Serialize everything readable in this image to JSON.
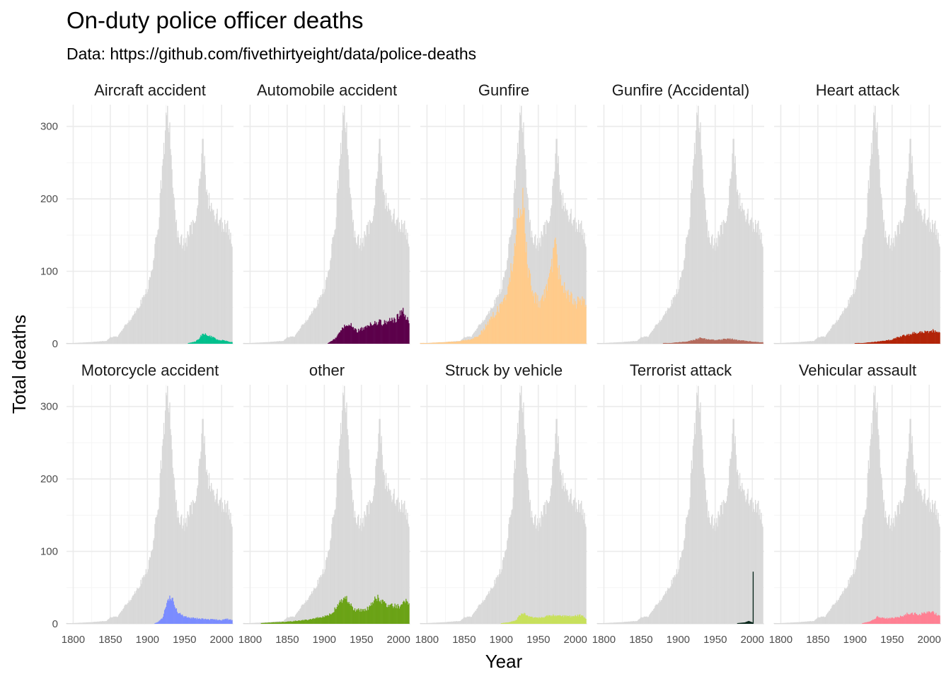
{
  "chart_data": {
    "type": "bar",
    "title": "On-duty police officer deaths",
    "subtitle": "Data: https://github.com/fivethirtyeight/data/police-deaths",
    "xlabel": "Year",
    "ylabel": "Total deaths",
    "xlim": [
      1791,
      2016
    ],
    "ylim": [
      0,
      330
    ],
    "x_ticks": [
      1800,
      1850,
      1900,
      1950,
      2000
    ],
    "y_ticks": [
      0,
      100,
      200,
      300
    ],
    "grid": true,
    "legend": "none",
    "total_series": {
      "name": "",
      "color": "#d9d9d9",
      "points": [
        [
          1791,
          1
        ],
        [
          1800,
          1
        ],
        [
          1820,
          2
        ],
        [
          1845,
          4
        ],
        [
          1850,
          9
        ],
        [
          1860,
          10
        ],
        [
          1870,
          25
        ],
        [
          1880,
          38
        ],
        [
          1890,
          55
        ],
        [
          1900,
          75
        ],
        [
          1905,
          95
        ],
        [
          1910,
          130
        ],
        [
          1915,
          170
        ],
        [
          1920,
          240
        ],
        [
          1925,
          300
        ],
        [
          1928,
          315
        ],
        [
          1932,
          265
        ],
        [
          1936,
          190
        ],
        [
          1940,
          150
        ],
        [
          1945,
          145
        ],
        [
          1950,
          135
        ],
        [
          1955,
          150
        ],
        [
          1960,
          160
        ],
        [
          1965,
          180
        ],
        [
          1970,
          220
        ],
        [
          1974,
          280
        ],
        [
          1977,
          245
        ],
        [
          1980,
          205
        ],
        [
          1985,
          190
        ],
        [
          1990,
          180
        ],
        [
          1995,
          175
        ],
        [
          2000,
          165
        ],
        [
          2005,
          160
        ],
        [
          2010,
          160
        ],
        [
          2013,
          140
        ],
        [
          2014,
          135
        ]
      ]
    },
    "facets": [
      {
        "label": "Aircraft accident",
        "color": "#00c08d",
        "points": [
          [
            1955,
            1
          ],
          [
            1965,
            3
          ],
          [
            1970,
            8
          ],
          [
            1975,
            14
          ],
          [
            1980,
            12
          ],
          [
            1985,
            10
          ],
          [
            1990,
            8
          ],
          [
            1995,
            5
          ],
          [
            2000,
            5
          ],
          [
            2005,
            4
          ],
          [
            2010,
            3
          ],
          [
            2014,
            2
          ]
        ]
      },
      {
        "label": "Automobile accident",
        "color": "#5c004b",
        "points": [
          [
            1905,
            1
          ],
          [
            1910,
            4
          ],
          [
            1915,
            8
          ],
          [
            1920,
            15
          ],
          [
            1925,
            22
          ],
          [
            1930,
            26
          ],
          [
            1935,
            28
          ],
          [
            1940,
            20
          ],
          [
            1945,
            18
          ],
          [
            1950,
            20
          ],
          [
            1955,
            23
          ],
          [
            1960,
            25
          ],
          [
            1965,
            27
          ],
          [
            1970,
            29
          ],
          [
            1975,
            30
          ],
          [
            1980,
            28
          ],
          [
            1985,
            30
          ],
          [
            1990,
            32
          ],
          [
            1995,
            32
          ],
          [
            2000,
            38
          ],
          [
            2005,
            45
          ],
          [
            2010,
            38
          ],
          [
            2014,
            30
          ]
        ]
      },
      {
        "label": "Gunfire",
        "color": "#ffcb8b",
        "points": [
          [
            1791,
            1
          ],
          [
            1800,
            1
          ],
          [
            1820,
            2
          ],
          [
            1840,
            3
          ],
          [
            1850,
            5
          ],
          [
            1860,
            6
          ],
          [
            1870,
            12
          ],
          [
            1880,
            25
          ],
          [
            1890,
            40
          ],
          [
            1900,
            52
          ],
          [
            1905,
            62
          ],
          [
            1910,
            90
          ],
          [
            1915,
            110
          ],
          [
            1920,
            150
          ],
          [
            1925,
            185
          ],
          [
            1928,
            197
          ],
          [
            1932,
            160
          ],
          [
            1935,
            110
          ],
          [
            1940,
            82
          ],
          [
            1945,
            65
          ],
          [
            1950,
            57
          ],
          [
            1955,
            60
          ],
          [
            1960,
            70
          ],
          [
            1965,
            85
          ],
          [
            1970,
            120
          ],
          [
            1973,
            145
          ],
          [
            1976,
            110
          ],
          [
            1980,
            85
          ],
          [
            1985,
            75
          ],
          [
            1990,
            68
          ],
          [
            1995,
            65
          ],
          [
            2000,
            55
          ],
          [
            2005,
            58
          ],
          [
            2010,
            62
          ],
          [
            2014,
            50
          ]
        ]
      },
      {
        "label": "Gunfire (Accidental)",
        "color": "#b46a5c",
        "points": [
          [
            1880,
            1
          ],
          [
            1890,
            1
          ],
          [
            1900,
            2
          ],
          [
            1910,
            3
          ],
          [
            1920,
            5
          ],
          [
            1930,
            8
          ],
          [
            1935,
            7
          ],
          [
            1940,
            6
          ],
          [
            1950,
            5
          ],
          [
            1960,
            6
          ],
          [
            1970,
            7
          ],
          [
            1980,
            5
          ],
          [
            1990,
            4
          ],
          [
            2000,
            3
          ],
          [
            2010,
            2
          ],
          [
            2014,
            2
          ]
        ]
      },
      {
        "label": "Heart attack",
        "color": "#b22408",
        "points": [
          [
            1900,
            1
          ],
          [
            1910,
            1
          ],
          [
            1920,
            2
          ],
          [
            1930,
            3
          ],
          [
            1940,
            4
          ],
          [
            1950,
            6
          ],
          [
            1960,
            10
          ],
          [
            1970,
            12
          ],
          [
            1980,
            15
          ],
          [
            1985,
            16
          ],
          [
            1990,
            15
          ],
          [
            1995,
            17
          ],
          [
            2000,
            17
          ],
          [
            2005,
            18
          ],
          [
            2010,
            16
          ],
          [
            2014,
            14
          ]
        ]
      },
      {
        "label": "Motorcycle accident",
        "color": "#7b8cff",
        "points": [
          [
            1910,
            1
          ],
          [
            1915,
            3
          ],
          [
            1920,
            8
          ],
          [
            1925,
            25
          ],
          [
            1930,
            38
          ],
          [
            1935,
            30
          ],
          [
            1940,
            18
          ],
          [
            1945,
            12
          ],
          [
            1950,
            10
          ],
          [
            1955,
            9
          ],
          [
            1960,
            8
          ],
          [
            1970,
            7
          ],
          [
            1980,
            6
          ],
          [
            1990,
            6
          ],
          [
            2000,
            5
          ],
          [
            2005,
            7
          ],
          [
            2010,
            6
          ],
          [
            2014,
            5
          ]
        ]
      },
      {
        "label": "other",
        "color": "#6ba316",
        "points": [
          [
            1815,
            1
          ],
          [
            1830,
            2
          ],
          [
            1850,
            3
          ],
          [
            1860,
            4
          ],
          [
            1870,
            5
          ],
          [
            1880,
            6
          ],
          [
            1890,
            8
          ],
          [
            1900,
            10
          ],
          [
            1905,
            12
          ],
          [
            1910,
            15
          ],
          [
            1915,
            22
          ],
          [
            1920,
            28
          ],
          [
            1925,
            35
          ],
          [
            1928,
            40
          ],
          [
            1932,
            32
          ],
          [
            1936,
            25
          ],
          [
            1940,
            20
          ],
          [
            1945,
            19
          ],
          [
            1950,
            18
          ],
          [
            1955,
            20
          ],
          [
            1960,
            22
          ],
          [
            1965,
            30
          ],
          [
            1970,
            38
          ],
          [
            1975,
            32
          ],
          [
            1980,
            28
          ],
          [
            1985,
            27
          ],
          [
            1990,
            25
          ],
          [
            1995,
            25
          ],
          [
            2000,
            24
          ],
          [
            2005,
            25
          ],
          [
            2010,
            34
          ],
          [
            2014,
            28
          ]
        ]
      },
      {
        "label": "Struck by vehicle",
        "color": "#c8e05c",
        "points": [
          [
            1900,
            1
          ],
          [
            1910,
            2
          ],
          [
            1920,
            5
          ],
          [
            1925,
            12
          ],
          [
            1930,
            14
          ],
          [
            1935,
            11
          ],
          [
            1940,
            9
          ],
          [
            1950,
            8
          ],
          [
            1960,
            10
          ],
          [
            1970,
            12
          ],
          [
            1980,
            11
          ],
          [
            1990,
            10
          ],
          [
            2000,
            11
          ],
          [
            2005,
            12
          ],
          [
            2010,
            10
          ],
          [
            2014,
            8
          ]
        ]
      },
      {
        "label": "Terrorist attack",
        "color": "#08261a",
        "points": [
          [
            1980,
            1
          ],
          [
            1990,
            2
          ],
          [
            1995,
            4
          ],
          [
            2000,
            2
          ],
          [
            2001,
            72
          ],
          [
            2002,
            0
          ]
        ]
      },
      {
        "label": "Vehicular assault",
        "color": "#ff8093",
        "points": [
          [
            1910,
            1
          ],
          [
            1920,
            3
          ],
          [
            1925,
            6
          ],
          [
            1930,
            10
          ],
          [
            1935,
            9
          ],
          [
            1940,
            8
          ],
          [
            1945,
            7
          ],
          [
            1950,
            8
          ],
          [
            1955,
            9
          ],
          [
            1960,
            10
          ],
          [
            1965,
            11
          ],
          [
            1970,
            14
          ],
          [
            1975,
            15
          ],
          [
            1980,
            14
          ],
          [
            1985,
            13
          ],
          [
            1990,
            14
          ],
          [
            1995,
            15
          ],
          [
            2000,
            15
          ],
          [
            2005,
            16
          ],
          [
            2010,
            13
          ],
          [
            2014,
            10
          ]
        ]
      }
    ]
  }
}
